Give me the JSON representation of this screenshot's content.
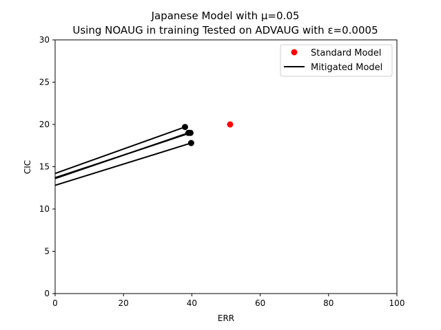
{
  "chart_data": {
    "type": "scatter",
    "title": "Japanese Model with μ=0.05",
    "subtitle": "Using NOAUG in training Tested on ADVAUG with ε=0.0005",
    "xlabel": "ERR",
    "ylabel": "CIC",
    "xlim": [
      0,
      100
    ],
    "ylim": [
      0,
      30
    ],
    "xticks": [
      0,
      20,
      40,
      60,
      80,
      100
    ],
    "yticks": [
      0,
      5,
      10,
      15,
      20,
      25,
      30
    ],
    "xtick_labels": [
      "0",
      "20",
      "40",
      "60",
      "80",
      "100"
    ],
    "ytick_labels": [
      "0",
      "5",
      "10",
      "15",
      "20",
      "25",
      "30"
    ],
    "grid": false,
    "legend_position": "top-right",
    "series": [
      {
        "name": "Standard Model",
        "kind": "scatter",
        "color": "#ff0000",
        "points": [
          [
            51.2,
            20.0
          ]
        ]
      },
      {
        "name": "Mitigated Model",
        "kind": "line",
        "color": "#000000",
        "lines": [
          [
            [
              0,
              14.2
            ],
            [
              38.0,
              19.7
            ]
          ],
          [
            [
              0,
              13.6
            ],
            [
              39.0,
              19.0
            ]
          ],
          [
            [
              0,
              13.7
            ],
            [
              39.6,
              19.0
            ]
          ],
          [
            [
              0,
              12.8
            ],
            [
              39.8,
              17.8
            ]
          ]
        ],
        "endpoints": [
          [
            38.0,
            19.7
          ],
          [
            39.0,
            19.0
          ],
          [
            39.6,
            19.0
          ],
          [
            39.8,
            17.8
          ]
        ]
      }
    ]
  }
}
